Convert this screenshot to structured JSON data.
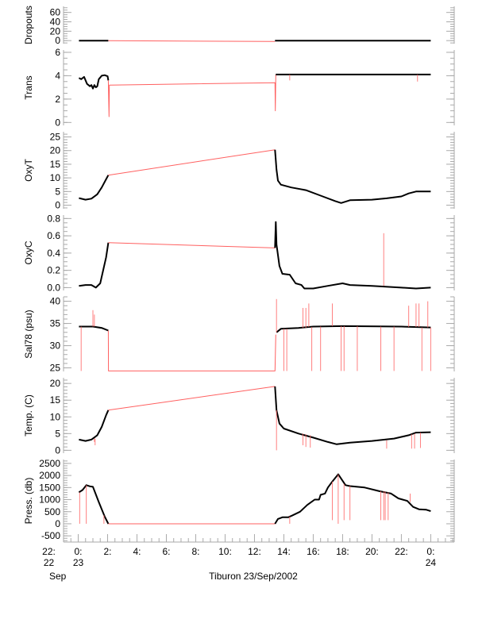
{
  "chart_data": [
    {
      "type": "line",
      "ylabel": "Dropouts",
      "ylim": [
        -6.5,
        73
      ],
      "ticks": [
        0,
        20,
        40,
        60
      ],
      "tick_labels": [
        "0",
        "20",
        "40",
        "60"
      ],
      "minor": 5,
      "segments": [
        {
          "color": "black",
          "points": [
            [
              0.05,
              0
            ],
            [
              2.05,
              0
            ]
          ]
        },
        {
          "color": "red",
          "points": [
            [
              2.05,
              0
            ],
            [
              13.4,
              -2
            ]
          ]
        },
        {
          "color": "black",
          "points": [
            [
              13.4,
              0
            ],
            [
              24,
              0
            ]
          ]
        }
      ],
      "spikes": []
    },
    {
      "type": "line",
      "ylabel": "Trans",
      "ylim": [
        -0.25,
        6.2
      ],
      "ticks": [
        0,
        2,
        4,
        6
      ],
      "tick_labels": [
        "0",
        "2",
        "4",
        "6"
      ],
      "minor": 0.5,
      "segments": [
        {
          "color": "black",
          "points": [
            [
              0.05,
              3.8
            ],
            [
              0.2,
              3.7
            ],
            [
              0.4,
              3.9
            ],
            [
              0.6,
              3.3
            ],
            [
              0.8,
              3.1
            ],
            [
              0.9,
              3.2
            ],
            [
              1.0,
              2.9
            ],
            [
              1.1,
              3.2
            ],
            [
              1.2,
              3.0
            ],
            [
              1.3,
              3.1
            ],
            [
              1.4,
              3.7
            ],
            [
              1.6,
              4.0
            ],
            [
              1.8,
              4.05
            ],
            [
              2.0,
              3.95
            ],
            [
              2.05,
              3.6
            ]
          ]
        },
        {
          "color": "red",
          "points": [
            [
              2.05,
              3.6
            ],
            [
              2.1,
              0.5
            ],
            [
              2.12,
              3.2
            ],
            [
              13.4,
              3.4
            ],
            [
              13.42,
              1.0
            ],
            [
              13.45,
              4.1
            ]
          ]
        },
        {
          "color": "black",
          "points": [
            [
              13.45,
              4.1
            ],
            [
              24,
              4.1
            ]
          ]
        }
      ],
      "spikes": [
        [
          14.4,
          4.1,
          3.6
        ],
        [
          23.1,
          4.1,
          3.5
        ]
      ]
    },
    {
      "type": "line",
      "ylabel": "OxyT",
      "ylim": [
        -1.3,
        26.9
      ],
      "ticks": [
        0,
        5,
        10,
        15,
        20,
        25
      ],
      "tick_labels": [
        "0",
        "5",
        "10",
        "15",
        "20",
        "25"
      ],
      "minor": 1,
      "segments": [
        {
          "color": "black",
          "points": [
            [
              0.05,
              2.6
            ],
            [
              0.5,
              2.0
            ],
            [
              0.9,
              2.4
            ],
            [
              1.3,
              4
            ],
            [
              1.6,
              6.5
            ],
            [
              1.9,
              9.5
            ],
            [
              2.05,
              11.0
            ]
          ]
        },
        {
          "color": "red",
          "points": [
            [
              2.05,
              11
            ],
            [
              13.4,
              20.3
            ]
          ]
        },
        {
          "color": "black",
          "points": [
            [
              13.4,
              20.3
            ],
            [
              13.5,
              13
            ],
            [
              13.6,
              9
            ],
            [
              13.8,
              7.5
            ],
            [
              14.5,
              6.5
            ],
            [
              15.5,
              5.5
            ],
            [
              16.5,
              3.5
            ],
            [
              17.5,
              1.5
            ],
            [
              17.9,
              0.8
            ],
            [
              18.5,
              1.8
            ],
            [
              20,
              2.0
            ],
            [
              21,
              2.5
            ],
            [
              22,
              3.2
            ],
            [
              22.5,
              4.3
            ],
            [
              23,
              5
            ],
            [
              24,
              5
            ]
          ]
        }
      ],
      "spikes": []
    },
    {
      "type": "line",
      "ylabel": "OxyC",
      "ylim": [
        -0.033,
        0.84
      ],
      "ticks": [
        0,
        0.2,
        0.4,
        0.6,
        0.8
      ],
      "tick_labels": [
        "0.0",
        "0.2",
        "0.4",
        "0.6",
        "0.8"
      ],
      "minor": 0.05,
      "segments": [
        {
          "color": "black",
          "points": [
            [
              0.05,
              0.02
            ],
            [
              0.5,
              0.03
            ],
            [
              0.9,
              0.03
            ],
            [
              1.2,
              0.0
            ],
            [
              1.5,
              0.05
            ],
            [
              1.7,
              0.2
            ],
            [
              1.9,
              0.35
            ],
            [
              2.05,
              0.52
            ]
          ]
        },
        {
          "color": "red",
          "points": [
            [
              2.05,
              0.52
            ],
            [
              13.4,
              0.46
            ]
          ]
        },
        {
          "color": "black",
          "points": [
            [
              13.4,
              0.46
            ],
            [
              13.45,
              0.76
            ],
            [
              13.5,
              0.5
            ],
            [
              13.7,
              0.25
            ],
            [
              13.9,
              0.16
            ],
            [
              14.4,
              0.15
            ],
            [
              14.8,
              0.05
            ],
            [
              15.2,
              0.03
            ],
            [
              15.4,
              -0.01
            ],
            [
              16,
              -0.01
            ],
            [
              17,
              0.02
            ],
            [
              18,
              0.05
            ],
            [
              18.5,
              0.03
            ],
            [
              20,
              0.02
            ],
            [
              22,
              0.0
            ],
            [
              23,
              -0.01
            ],
            [
              24,
              0.0
            ]
          ]
        }
      ],
      "spikes": [
        [
          20.8,
          0.02,
          0.63
        ]
      ]
    },
    {
      "type": "line",
      "ylabel": "Sal78 (psu)",
      "ylim": [
        24.2,
        41
      ],
      "ticks": [
        25,
        30,
        35,
        40
      ],
      "tick_labels": [
        "25",
        "30",
        "35",
        "40"
      ],
      "minor": 1,
      "segments": [
        {
          "color": "black",
          "points": [
            [
              0.05,
              34.3
            ],
            [
              1.0,
              34.3
            ],
            [
              1.6,
              34.0
            ],
            [
              2.05,
              33.4
            ]
          ]
        },
        {
          "color": "red",
          "points": [
            [
              2.05,
              33.4
            ],
            [
              2.06,
              24.3
            ],
            [
              13.4,
              24.3
            ],
            [
              13.45,
              32.5
            ]
          ]
        },
        {
          "color": "black",
          "points": [
            [
              13.5,
              33
            ],
            [
              13.8,
              33.8
            ],
            [
              15,
              34
            ],
            [
              16,
              34.3
            ],
            [
              18,
              34.4
            ],
            [
              22,
              34.3
            ],
            [
              24,
              34.1
            ]
          ]
        }
      ],
      "spikes": [
        [
          0.2,
          34.3,
          24.3
        ],
        [
          1.0,
          34.3,
          38
        ],
        [
          1.1,
          34.3,
          37
        ],
        [
          13.5,
          33,
          40.5
        ],
        [
          14.0,
          33.8,
          24.3
        ],
        [
          14.2,
          33.8,
          24.3
        ],
        [
          15.3,
          34,
          38.5
        ],
        [
          15.5,
          34,
          38.5
        ],
        [
          15.7,
          34.2,
          39.5
        ],
        [
          15.9,
          34.2,
          24.3
        ],
        [
          16.5,
          34.3,
          24.3
        ],
        [
          17.3,
          34.4,
          39.5
        ],
        [
          17.9,
          34.4,
          24.3
        ],
        [
          18.1,
          34.4,
          24.3
        ],
        [
          19.0,
          34.4,
          24.3
        ],
        [
          20.6,
          34.3,
          24.3
        ],
        [
          21.5,
          34.3,
          24.3
        ],
        [
          22.5,
          34.2,
          39
        ],
        [
          23.0,
          34.2,
          39.5
        ],
        [
          23.2,
          34.2,
          39.5
        ],
        [
          23.4,
          34.1,
          24.3
        ],
        [
          23.8,
          34.1,
          40
        ],
        [
          24,
          34.1,
          24.3
        ]
      ]
    },
    {
      "type": "line",
      "ylabel": "Temp. (C)",
      "ylim": [
        -0.86,
        21.7
      ],
      "ticks": [
        0,
        5,
        10,
        15,
        20
      ],
      "tick_labels": [
        "0",
        "5",
        "10",
        "15",
        "20"
      ],
      "minor": 1,
      "segments": [
        {
          "color": "black",
          "points": [
            [
              0.05,
              3.2
            ],
            [
              0.5,
              2.8
            ],
            [
              0.9,
              3.2
            ],
            [
              1.3,
              4.5
            ],
            [
              1.6,
              7
            ],
            [
              1.9,
              10.5
            ],
            [
              2.05,
              12
            ]
          ]
        },
        {
          "color": "red",
          "points": [
            [
              2.05,
              12
            ],
            [
              13.4,
              19.1
            ]
          ]
        },
        {
          "color": "black",
          "points": [
            [
              13.4,
              19.1
            ],
            [
              13.5,
              12
            ],
            [
              13.7,
              8
            ],
            [
              14,
              6.5
            ],
            [
              15,
              5
            ],
            [
              16,
              3.8
            ],
            [
              17,
              2.5
            ],
            [
              17.6,
              1.8
            ],
            [
              18.5,
              2.3
            ],
            [
              20,
              2.8
            ],
            [
              21.5,
              3.5
            ],
            [
              22.5,
              4.5
            ],
            [
              23,
              5.3
            ],
            [
              24,
              5.4
            ]
          ]
        }
      ],
      "spikes": [
        [
          1.1,
          3.5,
          2.5
        ],
        [
          1.15,
          3.5,
          1.5
        ],
        [
          13.5,
          12,
          0
        ],
        [
          15.3,
          5,
          1.5
        ],
        [
          15.5,
          4.8,
          1
        ],
        [
          15.8,
          4.5,
          0.8
        ],
        [
          21.0,
          3,
          0.5
        ],
        [
          22.7,
          4.8,
          0.5
        ],
        [
          22.9,
          5,
          0.5
        ],
        [
          23.3,
          5.3,
          0.7
        ]
      ]
    },
    {
      "type": "line",
      "ylabel": "Press. (db)",
      "ylim": [
        -757,
        2661
      ],
      "ticks": [
        -500,
        0,
        500,
        1000,
        1500,
        2000,
        2500
      ],
      "tick_labels": [
        "-500",
        "0",
        "500",
        "1000",
        "1500",
        "2000",
        "2500"
      ],
      "minor": 100,
      "segments": [
        {
          "color": "black",
          "points": [
            [
              0.05,
              1300
            ],
            [
              0.3,
              1400
            ],
            [
              0.55,
              1600
            ],
            [
              0.8,
              1550
            ],
            [
              1.0,
              1530
            ],
            [
              1.4,
              900
            ],
            [
              1.8,
              300
            ],
            [
              2.05,
              0
            ]
          ]
        },
        {
          "color": "red",
          "points": [
            [
              2.05,
              0
            ],
            [
              13.4,
              0
            ]
          ]
        },
        {
          "color": "black",
          "points": [
            [
              13.4,
              0
            ],
            [
              13.6,
              200
            ],
            [
              13.9,
              270
            ],
            [
              14.3,
              270
            ],
            [
              14.6,
              350
            ],
            [
              15.1,
              500
            ],
            [
              15.6,
              780
            ],
            [
              16.1,
              1000
            ],
            [
              16.4,
              1000
            ],
            [
              16.5,
              1200
            ],
            [
              16.8,
              1250
            ],
            [
              17.0,
              1500
            ],
            [
              17.3,
              1750
            ],
            [
              17.7,
              2050
            ],
            [
              18.2,
              1600
            ],
            [
              18.5,
              1560
            ],
            [
              19.5,
              1500
            ],
            [
              20.5,
              1350
            ],
            [
              21.3,
              1250
            ],
            [
              21.8,
              1050
            ],
            [
              22.4,
              950
            ],
            [
              22.8,
              700
            ],
            [
              23.2,
              600
            ],
            [
              23.7,
              580
            ],
            [
              24,
              520
            ]
          ]
        }
      ],
      "spikes": [
        [
          0.1,
          1300,
          0
        ],
        [
          0.55,
          1600,
          0
        ],
        [
          1.75,
          350,
          0
        ],
        [
          14.4,
          300,
          0
        ],
        [
          17.3,
          1750,
          150
        ],
        [
          17.7,
          2050,
          0
        ],
        [
          18.1,
          1650,
          150
        ],
        [
          18.5,
          1560,
          150
        ],
        [
          20.6,
          1350,
          150
        ],
        [
          20.8,
          1340,
          150
        ],
        [
          20.9,
          1330,
          150
        ],
        [
          21.1,
          1300,
          150
        ],
        [
          22.6,
          900,
          1250
        ]
      ]
    }
  ],
  "x_axis": {
    "xlim": [
      -1,
      25.6
    ],
    "ticks": [
      -2,
      0,
      2,
      4,
      6,
      8,
      10,
      12,
      14,
      16,
      18,
      20,
      22,
      24
    ],
    "tick_labels": [
      "22:",
      "0:",
      "2:",
      "4:",
      "6:",
      "8:",
      "10:",
      "12:",
      "14:",
      "16:",
      "18:",
      "20:",
      "22:",
      "0:"
    ],
    "day_labels": [
      {
        "at": -2,
        "text": "22"
      },
      {
        "at": 0,
        "text": "23"
      },
      {
        "at": 24,
        "text": "24"
      }
    ],
    "month_label": "Sep",
    "title": "Tiburon 23/Sep/2002"
  },
  "colors": {
    "data": "#000000",
    "flagged": "#ff6060",
    "axis": "#aaaaaa"
  }
}
